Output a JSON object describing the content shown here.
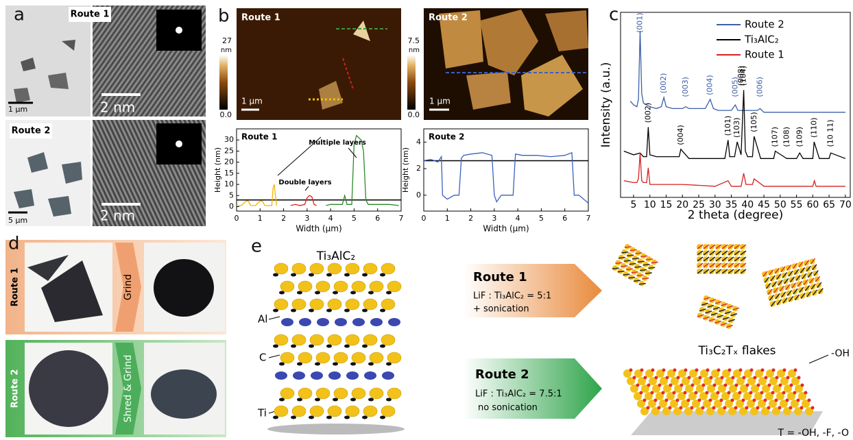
{
  "panels": {
    "a": {
      "letter": "a",
      "route1": "Route 1",
      "route2": "Route 2",
      "scale_top_left": "1 µm",
      "scale_top_right": "2 nm",
      "scale_bottom_right": "2 nm",
      "scale_bottom_left": "5 µm"
    },
    "b": {
      "letter": "b",
      "image1": {
        "label": "Route 1",
        "scale": "1 µm",
        "colorbar_max": 27,
        "colorbar_unit": "nm",
        "colorbar_min": {
          "value": 0,
          "label": "0.0"
        }
      },
      "image2": {
        "label": "Route 2",
        "scale": "1 µm",
        "colorbar_max": 7.5,
        "colorbar_unit": "nm",
        "colorbar_min": {
          "value": 0,
          "label": "0.0"
        }
      }
    },
    "c": {
      "letter": "c"
    },
    "d": {
      "letter": "d",
      "route1": "Route 1",
      "step1": "Grind",
      "route2": "Route 2",
      "step2": "Shred & Grind"
    },
    "e": {
      "letter": "e",
      "structure": "Ti₃AlC₂",
      "label_al": "Al",
      "label_c": "C",
      "label_ti": "Ti",
      "route1": {
        "title": "Route 1",
        "ratio": "LiF : Ti₃AlC₂ = 5:1",
        "note": "+ sonication"
      },
      "route2": {
        "title": "Route 2",
        "ratio": "LiF : Ti₃AlC₂ = 7.5:1",
        "note": "no sonication"
      },
      "product": "Ti₃C₂Tₓ flakes",
      "oh": "-OH",
      "termination": "T = -OH, -F, -O"
    }
  },
  "chart_data": [
    {
      "type": "line",
      "title": "Route 1",
      "x_label": "Width (µm)",
      "y_label": "Height (nm)",
      "xlim": [
        0,
        7
      ],
      "xticks": [
        0,
        1,
        2,
        3,
        4,
        5,
        6,
        7
      ],
      "ylim": [
        -2,
        35
      ],
      "yticks": [
        0,
        5,
        10,
        15,
        20,
        25,
        30
      ],
      "reference_line": 3,
      "annotations": [
        "Multiple layers",
        "Double layers"
      ],
      "series": [
        {
          "color": "#f0b400",
          "x": [
            0,
            0.2,
            0.4,
            0.5,
            0.6,
            0.8,
            1,
            1.1,
            1.2,
            1.3,
            1.5,
            1.55,
            1.6,
            1.7
          ],
          "values": [
            0.5,
            0.5,
            2.5,
            2.5,
            0.5,
            0.5,
            2.5,
            2.5,
            0.5,
            0.5,
            0.5,
            8,
            10,
            0.5
          ]
        },
        {
          "color": "#e02020",
          "x": [
            2.3,
            2.5,
            2.7,
            2.9,
            3.0,
            3.1,
            3.2,
            3.3,
            3.4
          ],
          "values": [
            0.5,
            1,
            0.5,
            1,
            4,
            5,
            4.5,
            1,
            0.5
          ]
        },
        {
          "color": "#2a8a2a",
          "x": [
            3.8,
            4.0,
            4.3,
            4.5,
            4.6,
            4.7,
            4.9,
            5.0,
            5.1,
            5.2,
            5.3,
            5.4,
            5.5,
            5.6,
            6.0,
            6.5,
            6.9
          ],
          "values": [
            0.5,
            1,
            1,
            1,
            5,
            1,
            1,
            28,
            32,
            31,
            30,
            25,
            3,
            1,
            1,
            1,
            0.5
          ]
        }
      ]
    },
    {
      "type": "line",
      "title": "Route 2",
      "x_label": "Width (µm)",
      "y_label": "Height (nm)",
      "xlim": [
        0,
        7
      ],
      "xticks": [
        0,
        1,
        2,
        3,
        4,
        5,
        6,
        7
      ],
      "ylim": [
        -1.2,
        5
      ],
      "yticks": [
        0,
        2,
        4
      ],
      "reference_line": 2.6,
      "series": [
        {
          "color": "#3b5fc0",
          "x": [
            0,
            0.3,
            0.6,
            0.75,
            0.8,
            1.0,
            1.3,
            1.5,
            1.6,
            1.7,
            2,
            2.5,
            2.9,
            3.0,
            3.1,
            3.3,
            3.6,
            3.8,
            3.9,
            4.2,
            4.8,
            5.4,
            6.0,
            6.3,
            6.4,
            6.6,
            7
          ],
          "values": [
            2.6,
            2.7,
            2.5,
            2.9,
            0,
            -0.3,
            0,
            0,
            2.8,
            3,
            3.1,
            3.2,
            3.0,
            0,
            -0.5,
            0,
            0,
            0,
            3.1,
            3,
            3,
            2.9,
            3,
            3.2,
            0,
            0,
            -0.6
          ]
        }
      ]
    },
    {
      "type": "line",
      "x_label": "2 theta (degree)",
      "y_label": "Intensity (a.u.)",
      "xlim": [
        1,
        71.5
      ],
      "xticks": [
        5,
        10,
        15,
        20,
        25,
        30,
        35,
        40,
        45,
        50,
        55,
        60,
        65,
        70
      ],
      "ylim": [
        0,
        100
      ],
      "series": [
        {
          "name": "Route 2",
          "color": "#3b5fa8",
          "x": [
            4,
            5,
            6,
            6.5,
            7,
            7.5,
            8,
            9,
            10,
            12,
            13.5,
            14.3,
            15,
            17,
            20,
            21,
            22,
            25,
            27,
            28.5,
            29.5,
            31,
            33,
            35,
            36.2,
            37,
            39,
            41,
            43,
            43.8,
            45,
            50,
            55,
            60,
            65,
            70
          ],
          "values": [
            52,
            50,
            49,
            53,
            90,
            56,
            51,
            50,
            49,
            48,
            49,
            54,
            49,
            48,
            48,
            49,
            48,
            48,
            48,
            53,
            48,
            47,
            47,
            47,
            50,
            47,
            47,
            47,
            47,
            48,
            46,
            46,
            46,
            46,
            46,
            46
          ],
          "peak_labels": [
            {
              "label": "(001)",
              "x": 7
            },
            {
              "label": "(002)",
              "x": 14.3
            },
            {
              "label": "(003)",
              "x": 21
            },
            {
              "label": "(004)",
              "x": 28.5
            },
            {
              "label": "(005)",
              "x": 36.2
            },
            {
              "label": "(006)",
              "x": 43.8
            }
          ]
        },
        {
          "name": "Ti₃AlC₂",
          "color": "#000000",
          "x": [
            2,
            5,
            7,
            8,
            9,
            9.5,
            10,
            12,
            16,
            19,
            19.5,
            22,
            26,
            30,
            33,
            34,
            34.5,
            36,
            36.8,
            38,
            38.8,
            39.3,
            40,
            41.5,
            42,
            44,
            48,
            48.5,
            52,
            55,
            56,
            57,
            60,
            60.4,
            62,
            65,
            65.5,
            70
          ],
          "values": [
            25,
            23,
            24,
            22,
            22,
            38,
            23,
            22,
            22,
            22,
            26,
            21,
            21,
            21,
            21,
            31,
            22,
            22,
            30,
            23,
            58,
            25,
            22,
            22,
            33,
            21,
            21,
            25,
            21,
            21,
            24,
            21,
            21,
            30,
            21,
            21,
            24,
            21
          ],
          "peak_labels": [
            {
              "label": "(002)",
              "x": 9.5
            },
            {
              "label": "(004)",
              "x": 19.5
            },
            {
              "label": "(101)",
              "x": 34
            },
            {
              "label": "(103)",
              "x": 36.8
            },
            {
              "label": "(008)",
              "x": 38
            },
            {
              "label": "(104)",
              "x": 38.8
            },
            {
              "label": "(105)",
              "x": 42
            },
            {
              "label": "(107)",
              "x": 48.5
            },
            {
              "label": "(108)",
              "x": 52
            },
            {
              "label": "(109)",
              "x": 56
            },
            {
              "label": "(110)",
              "x": 60.4
            },
            {
              "label": "(10 11)",
              "x": 65.5
            }
          ]
        },
        {
          "name": "Route 1",
          "color": "#d62020",
          "x": [
            2,
            5,
            6,
            6.5,
            7,
            7.5,
            8,
            9,
            9.5,
            10,
            12,
            20,
            30,
            34,
            35,
            38,
            38.8,
            39.5,
            41.5,
            42,
            45,
            55,
            60,
            60.5,
            61,
            70
          ],
          "values": [
            9,
            8,
            8,
            10,
            24,
            9,
            8,
            8,
            16,
            7,
            7,
            7,
            6,
            9,
            6,
            6,
            13,
            7,
            7,
            10,
            6,
            6,
            6,
            9,
            6,
            6
          ]
        }
      ]
    }
  ]
}
